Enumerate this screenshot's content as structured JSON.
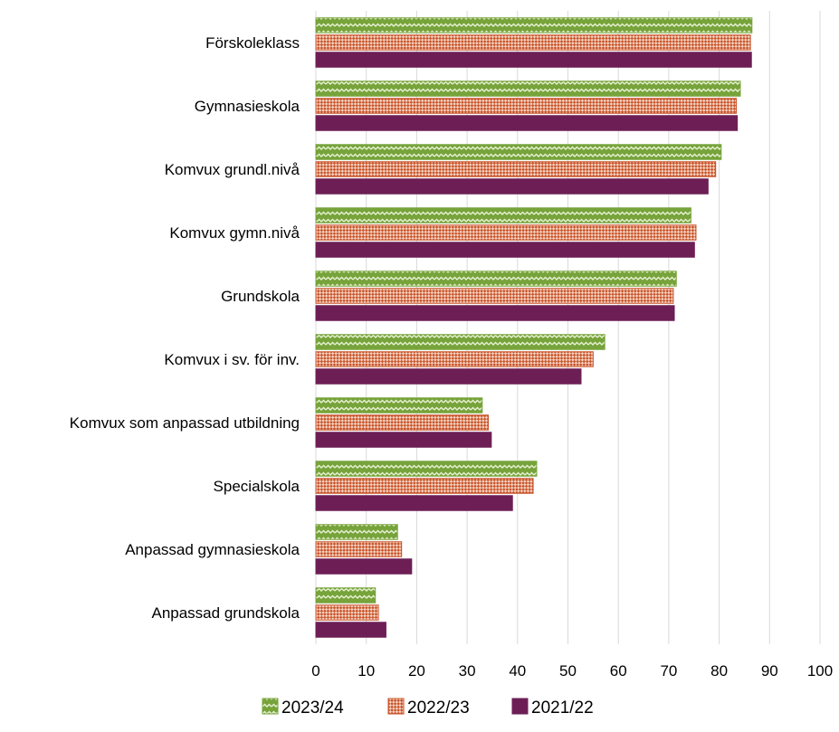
{
  "chart_data": {
    "type": "bar",
    "orientation": "horizontal",
    "categories": [
      "Förskoleklass",
      "Gymnasieskola",
      "Komvux grundl.nivå",
      "Komvux gymn.nivå",
      "Grundskola",
      "Komvux i sv. för inv.",
      "Komvux som anpassad utbildning",
      "Specialskola",
      "Anpassad gymnasieskola",
      "Anpassad grundskola"
    ],
    "series": [
      {
        "name": "2023/24",
        "color": "#77a33b",
        "pattern": "zigzag",
        "values": [
          86.5,
          84.2,
          80.4,
          74.4,
          71.5,
          57.3,
          33.0,
          43.8,
          16.2,
          11.8
        ]
      },
      {
        "name": "2022/23",
        "color": "#c8532a",
        "pattern": "diagonal-checker",
        "values": [
          86.2,
          83.4,
          79.3,
          75.4,
          70.9,
          55.0,
          34.2,
          43.1,
          17.0,
          12.4
        ]
      },
      {
        "name": "2021/22",
        "color": "#6d1f55",
        "pattern": "solid",
        "values": [
          86.4,
          83.6,
          77.8,
          75.1,
          71.1,
          52.6,
          34.8,
          39.0,
          19.0,
          13.9
        ]
      }
    ],
    "x_ticks": [
      0,
      10,
      20,
      30,
      40,
      50,
      60,
      70,
      80,
      90,
      100
    ],
    "xlim": [
      0,
      100
    ],
    "grid": "vertical",
    "legend": "bottom-center",
    "title": "",
    "xlabel": "",
    "ylabel": ""
  }
}
